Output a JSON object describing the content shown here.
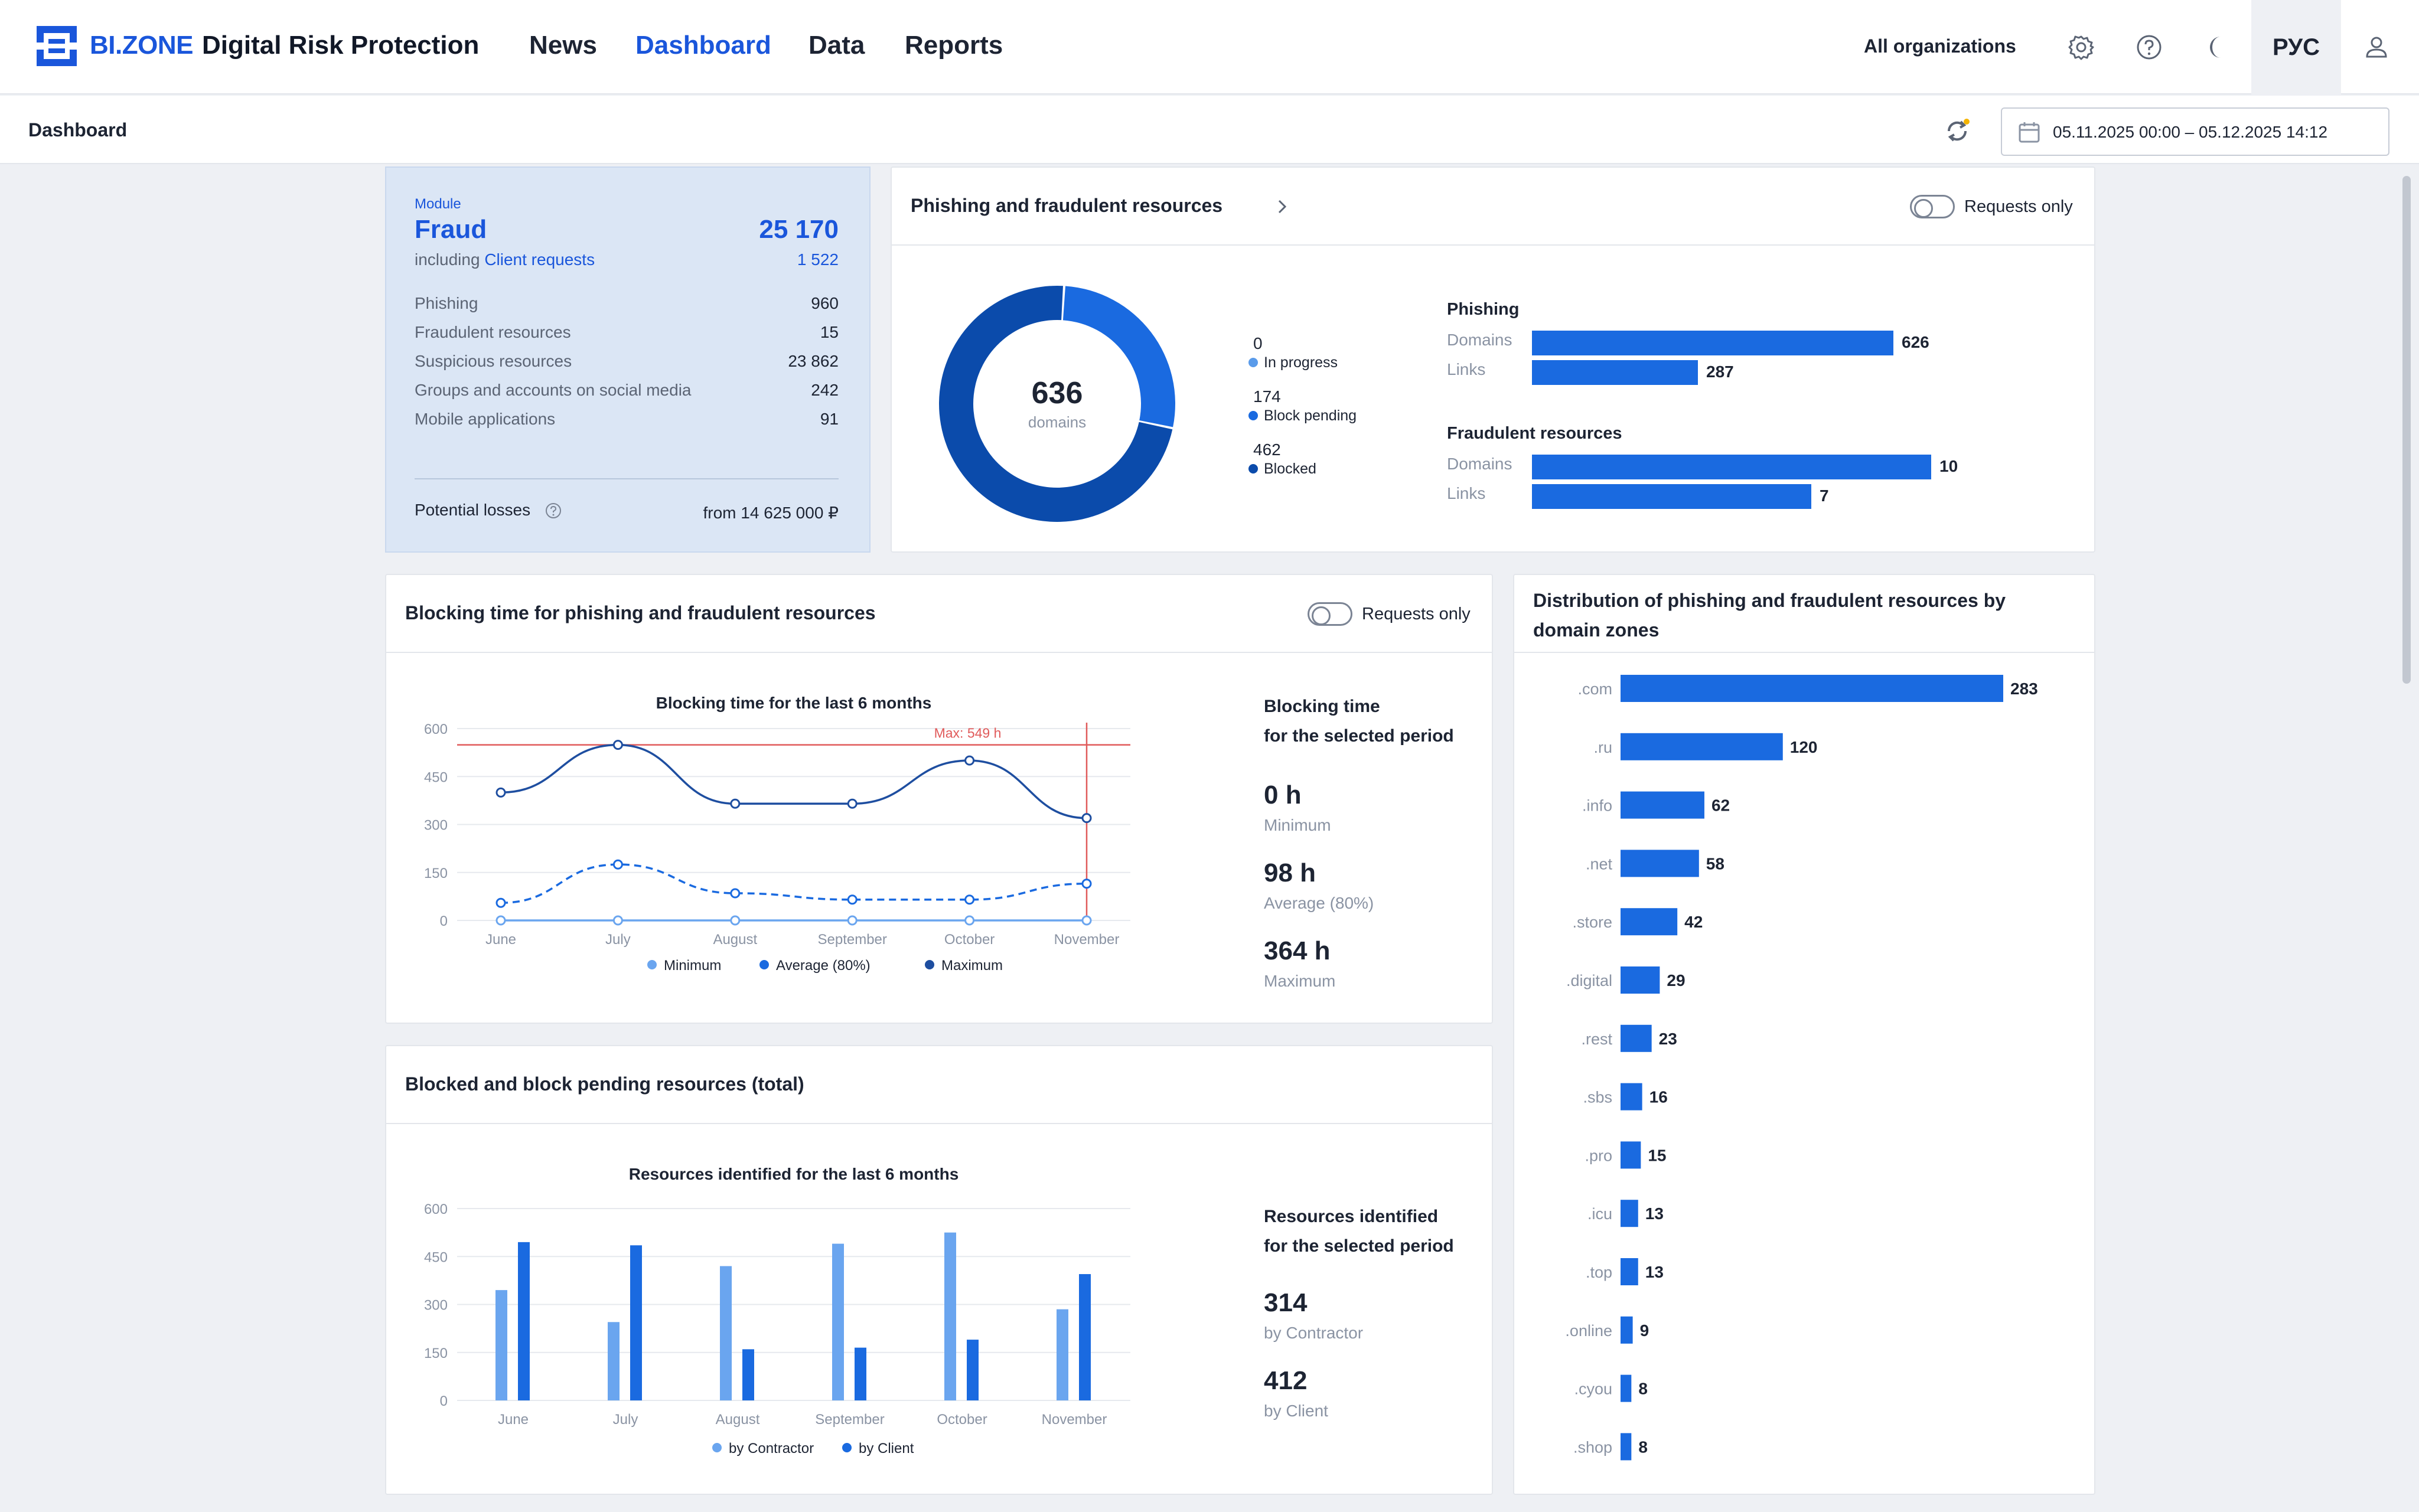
{
  "app": {
    "brand": "BI.ZONE",
    "product": "Digital Risk Protection",
    "nav": [
      {
        "label": "News",
        "active": false
      },
      {
        "label": "Dashboard",
        "active": true
      },
      {
        "label": "Data",
        "active": false
      },
      {
        "label": "Reports",
        "active": false
      }
    ],
    "org_selector": "All organizations",
    "language": "РУС",
    "icons": [
      "settings-icon",
      "help-icon",
      "theme-moon-icon",
      "user-icon"
    ]
  },
  "subbar": {
    "title": "Dashboard",
    "date_range": "05.11.2025 00:00 – 05.12.2025 14:12"
  },
  "fraud_module": {
    "module_label": "Module",
    "title": "Fraud",
    "total": "25 170",
    "including_prefix": "including",
    "including_link": "Client requests",
    "including_value": "1 522",
    "rows": [
      {
        "label": "Phishing",
        "value": "960"
      },
      {
        "label": "Fraudulent resources",
        "value": "15"
      },
      {
        "label": "Suspicious resources",
        "value": "23 862"
      },
      {
        "label": "Groups and accounts on social media",
        "value": "242"
      },
      {
        "label": "Mobile applications",
        "value": "91"
      }
    ],
    "potential_losses_label": "Potential losses",
    "potential_losses_value": "from 14 625 000 ₽"
  },
  "phishing_card": {
    "title": "Phishing and fraudulent resources",
    "toggle_label": "Requests only",
    "donut_total": "636",
    "donut_unit": "domains",
    "legend": [
      {
        "value": "0",
        "label": "In progress",
        "color": "#5a9bea"
      },
      {
        "value": "174",
        "label": "Block pending",
        "color": "#1a6ae0"
      },
      {
        "value": "462",
        "label": "Blocked",
        "color": "#0b4bab"
      }
    ],
    "groups": [
      {
        "title": "Phishing",
        "rows": [
          {
            "label": "Domains",
            "value": 626
          },
          {
            "label": "Links",
            "value": 287
          }
        ]
      },
      {
        "title": "Fraudulent resources",
        "rows": [
          {
            "label": "Domains",
            "value": 10
          },
          {
            "label": "Links",
            "value": 7
          }
        ]
      }
    ]
  },
  "blocking_card": {
    "title": "Blocking time for phishing and fraudulent resources",
    "toggle_label": "Requests only",
    "stats_title_1": "Blocking time",
    "stats_title_2": "for the selected period",
    "stats": [
      {
        "value": "0 h",
        "label": "Minimum"
      },
      {
        "value": "98 h",
        "label": "Average (80%)"
      },
      {
        "value": "364 h",
        "label": "Maximum"
      }
    ]
  },
  "blocked_card": {
    "title": "Blocked and block pending resources (total)",
    "stats_title_1": "Resources identified",
    "stats_title_2": "for the selected period",
    "stats": [
      {
        "value": "314",
        "label": "by Contractor"
      },
      {
        "value": "412",
        "label": "by Client"
      }
    ]
  },
  "zones_card": {
    "title_1": "Distribution of phishing and fraudulent resources by",
    "title_2": "domain zones"
  },
  "chart_data": [
    {
      "type": "pie",
      "title": "",
      "categories": [
        "In progress",
        "Block pending",
        "Blocked"
      ],
      "values": [
        0,
        174,
        462
      ],
      "colors": [
        "#5a9bea",
        "#1a6ae0",
        "#0b4bab"
      ]
    },
    {
      "type": "line",
      "title": "Blocking time for the last 6 months",
      "categories": [
        "June",
        "July",
        "August",
        "September",
        "October",
        "November"
      ],
      "ylim": [
        0,
        600
      ],
      "yticks": [
        0,
        150,
        300,
        450,
        600
      ],
      "series": [
        {
          "name": "Minimum",
          "values": [
            0,
            0,
            0,
            0,
            0,
            0
          ],
          "color": "#6aa5ef",
          "dash": false
        },
        {
          "name": "Average (80%)",
          "values": [
            55,
            175,
            85,
            65,
            65,
            115
          ],
          "color": "#1a6ae0",
          "dash": true
        },
        {
          "name": "Maximum",
          "values": [
            400,
            549,
            365,
            365,
            500,
            320
          ],
          "color": "#1e4ea0",
          "dash": false
        }
      ],
      "reference_line": {
        "value": 549,
        "label": "Max: 549 h",
        "color": "#e05a5a"
      },
      "grid": true,
      "legend": "bottom"
    },
    {
      "type": "bar",
      "title": "Resources identified for the last 6 months",
      "categories": [
        "June",
        "July",
        "August",
        "September",
        "October",
        "November"
      ],
      "ylim": [
        0,
        600
      ],
      "yticks": [
        0,
        150,
        300,
        450,
        600
      ],
      "series": [
        {
          "name": "by Contractor",
          "values": [
            345,
            245,
            420,
            490,
            525,
            285
          ],
          "color": "#6aa5ef"
        },
        {
          "name": "by Client",
          "values": [
            495,
            485,
            160,
            165,
            190,
            395
          ],
          "color": "#1a6ae0"
        }
      ],
      "grid": true,
      "legend": "bottom"
    },
    {
      "type": "bar",
      "title": "",
      "orientation": "horizontal",
      "categories": [
        ".com",
        ".ru",
        ".info",
        ".net",
        ".store",
        ".digital",
        ".rest",
        ".sbs",
        ".pro",
        ".icu",
        ".top",
        ".online",
        ".cyou",
        ".shop"
      ],
      "values": [
        283,
        120,
        62,
        58,
        42,
        29,
        23,
        16,
        15,
        13,
        13,
        9,
        8,
        8
      ],
      "color": "#1a6ae0"
    }
  ]
}
